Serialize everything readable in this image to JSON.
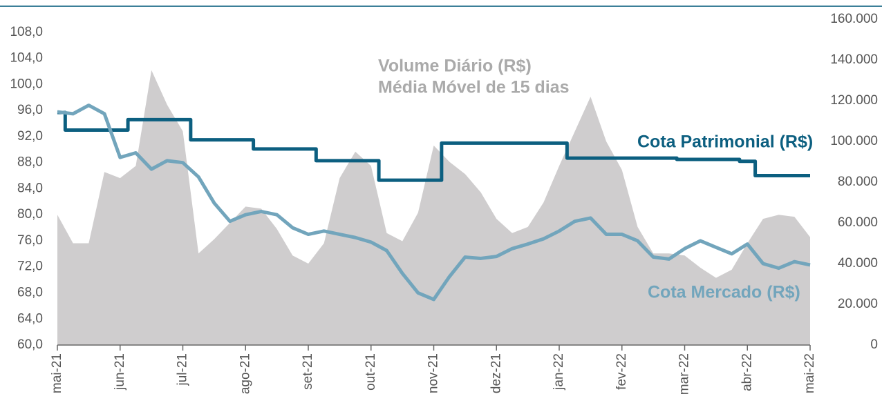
{
  "chart_data": {
    "type": "line",
    "xticks": [
      {
        "value": 0,
        "label": "mai-21"
      },
      {
        "value": 1,
        "label": "jun-21"
      },
      {
        "value": 2,
        "label": "jul-21"
      },
      {
        "value": 3,
        "label": "ago-21"
      },
      {
        "value": 4,
        "label": "set-21"
      },
      {
        "value": 5,
        "label": "out-21"
      },
      {
        "value": 6,
        "label": "nov-21"
      },
      {
        "value": 7,
        "label": "dez-21"
      },
      {
        "value": 8,
        "label": "jan-22"
      },
      {
        "value": 9,
        "label": "fev-22"
      },
      {
        "value": 10,
        "label": "mar-22"
      },
      {
        "value": 11,
        "label": "abr-22"
      },
      {
        "value": 12,
        "label": "mai-22"
      }
    ],
    "xlim": [
      0,
      12
    ],
    "ylim": [
      60,
      110
    ],
    "yticks": [
      {
        "value": 60,
        "label": "60,0"
      },
      {
        "value": 64,
        "label": "64,0"
      },
      {
        "value": 68,
        "label": "68,0"
      },
      {
        "value": 72,
        "label": "72,0"
      },
      {
        "value": 76,
        "label": "76,0"
      },
      {
        "value": 80,
        "label": "80,0"
      },
      {
        "value": 84,
        "label": "84,0"
      },
      {
        "value": 88,
        "label": "88,0"
      },
      {
        "value": 92,
        "label": "92,0"
      },
      {
        "value": 96,
        "label": "96,0"
      },
      {
        "value": 100,
        "label": "100,0"
      },
      {
        "value": 104,
        "label": "104,0"
      },
      {
        "value": 108,
        "label": "108,0"
      }
    ],
    "y2lim": [
      0,
      160000
    ],
    "y2ticks": [
      0,
      {
        "value": 20000,
        "label": "20.000"
      },
      {
        "value": 40000,
        "label": "40.000"
      },
      {
        "value": 60000,
        "label": "60.000"
      },
      {
        "value": 80000,
        "label": "80.000"
      },
      {
        "value": 100000,
        "label": "100.000"
      },
      {
        "value": 120000,
        "label": "120.000"
      },
      {
        "value": 140000,
        "label": "140.000"
      },
      {
        "value": 160000,
        "label": "160.000"
      }
    ],
    "x": [
      0,
      0.25,
      0.5,
      0.75,
      1,
      1.25,
      1.5,
      1.75,
      2,
      2.25,
      2.5,
      2.75,
      3,
      3.25,
      3.5,
      3.75,
      4,
      4.25,
      4.5,
      4.75,
      5,
      5.25,
      5.5,
      5.75,
      6,
      6.25,
      6.5,
      6.75,
      7,
      7.25,
      7.5,
      7.75,
      8,
      8.25,
      8.5,
      8.75,
      9,
      9.25,
      9.5,
      9.75,
      10,
      10.25,
      10.5,
      10.75,
      11,
      11.25,
      11.5,
      11.75,
      12
    ],
    "series": [
      {
        "name": "Volume Diário (R$)",
        "kind": "area",
        "axis": "y2",
        "color": "#cfcdce",
        "values": [
          64000,
          50000,
          50000,
          85000,
          82000,
          88000,
          135000,
          118000,
          105000,
          45000,
          52000,
          60000,
          68000,
          67000,
          57000,
          44000,
          40000,
          50000,
          82000,
          95000,
          88000,
          55000,
          51000,
          65000,
          98000,
          90000,
          84000,
          75000,
          62000,
          55000,
          58000,
          70000,
          88000,
          105000,
          122000,
          100000,
          86000,
          58000,
          45000,
          45000,
          44000,
          38000,
          33000,
          37000,
          50000,
          62000,
          64000,
          63000,
          53000
        ]
      },
      {
        "name": "Cota Patrimonial (R$)",
        "kind": "step",
        "color": "#0c5f80",
        "values": [
          95.7,
          93.0,
          93.0,
          93.0,
          93.0,
          94.6,
          94.6,
          94.6,
          94.6,
          91.5,
          91.5,
          91.5,
          91.5,
          90.1,
          90.1,
          90.1,
          90.1,
          88.3,
          88.3,
          88.3,
          88.3,
          85.3,
          85.3,
          85.3,
          85.3,
          91.0,
          91.0,
          91.0,
          91.0,
          91.0,
          91.0,
          91.0,
          91.0,
          88.7,
          88.7,
          88.7,
          88.7,
          88.7,
          88.7,
          88.7,
          88.5,
          88.5,
          88.5,
          88.5,
          88.2,
          86.0,
          86.0,
          86.0,
          86.0
        ]
      },
      {
        "name": "Cota Mercado (R$)",
        "kind": "line",
        "color": "#72a5bc",
        "values": [
          95.8,
          95.5,
          96.8,
          95.5,
          88.8,
          89.5,
          87.0,
          88.3,
          88.0,
          85.8,
          81.8,
          79.0,
          80.0,
          80.5,
          80.0,
          78.0,
          77.0,
          77.5,
          77.0,
          76.5,
          75.8,
          74.5,
          71.0,
          68.0,
          67.0,
          70.5,
          73.5,
          73.3,
          73.6,
          74.8,
          75.5,
          76.3,
          77.5,
          79.0,
          79.5,
          77.0,
          77.0,
          76.0,
          73.5,
          73.2,
          74.8,
          76.0,
          75.0,
          74.0,
          75.5,
          72.5,
          71.8,
          72.8,
          72.3
        ]
      }
    ],
    "annotation": "Média Móvel de 15 dias"
  }
}
